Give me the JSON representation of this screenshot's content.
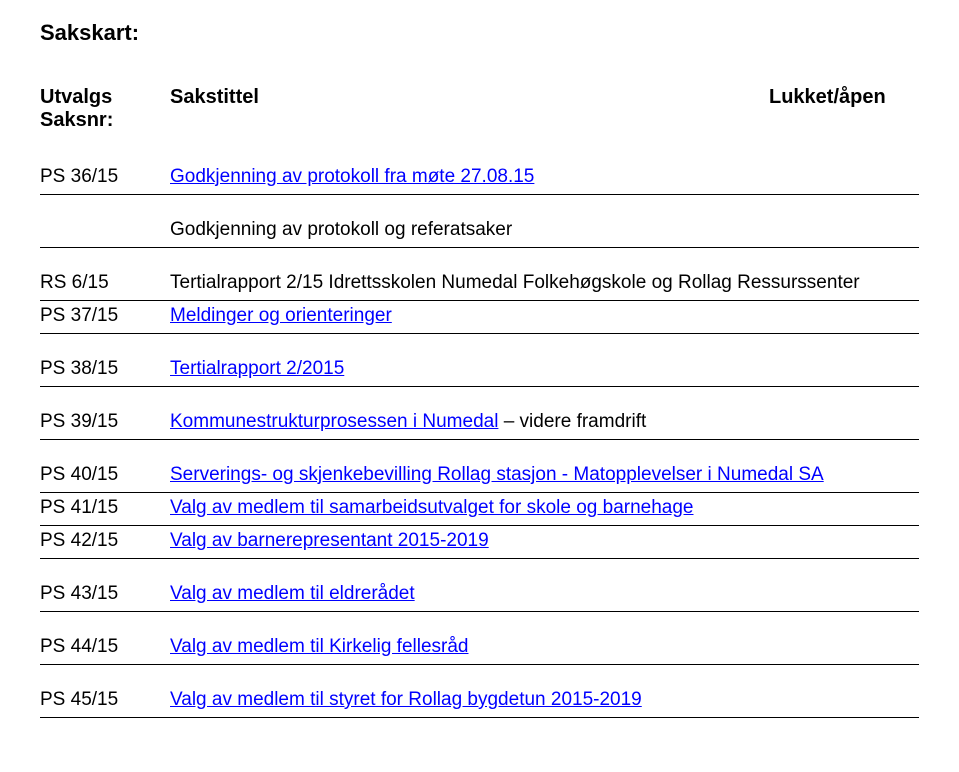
{
  "title": "Sakskart:",
  "columns": {
    "left_line1": "Utvalgs",
    "left_line2": "Saksnr:",
    "mid": "Sakstittel",
    "right": "Lukket/åpen"
  },
  "link_color": "#0000ff",
  "text_color": "#000000",
  "border_color": "#000000",
  "font_size_body": 19,
  "font_size_title": 22,
  "rows": [
    {
      "id": "PS 36/15",
      "parts": [
        {
          "text": "Godkjenning av protokoll fra møte 27.08.15",
          "link": true
        }
      ],
      "spacer_after": true
    },
    {
      "id": "",
      "parts": [
        {
          "text": "Godkjenning av protokoll og referatsaker",
          "link": false
        }
      ],
      "spacer_after": true
    },
    {
      "id": "RS 6/15",
      "parts": [
        {
          "text": "Tertialrapport 2/15 Idrettsskolen Numedal Folkehøgskole og Rollag Ressurssenter",
          "link": false
        }
      ]
    },
    {
      "id": "PS 37/15",
      "parts": [
        {
          "text": "Meldinger og orienteringer",
          "link": true
        }
      ],
      "spacer_after": true
    },
    {
      "id": "PS 38/15",
      "parts": [
        {
          "text": "Tertialrapport 2/2015",
          "link": true
        }
      ],
      "spacer_after": true
    },
    {
      "id": "PS 39/15",
      "parts": [
        {
          "text": "Kommunestrukturprosessen i Numedal",
          "link": true
        },
        {
          "text": " – videre framdrift",
          "link": false
        }
      ],
      "spacer_after": true
    },
    {
      "id": "PS 40/15",
      "parts": [
        {
          "text": "Serverings- og skjenkebevilling Rollag stasjon - Matopplevelser i Numedal SA",
          "link": true
        }
      ]
    },
    {
      "id": "PS 41/15",
      "parts": [
        {
          "text": "Valg av medlem til samarbeidsutvalget for skole og barnehage",
          "link": true
        }
      ]
    },
    {
      "id": "PS 42/15",
      "parts": [
        {
          "text": "Valg av barnerepresentant 2015-2019",
          "link": true
        }
      ],
      "spacer_after": true
    },
    {
      "id": "PS 43/15",
      "parts": [
        {
          "text": "Valg av medlem til eldrerådet",
          "link": true
        }
      ],
      "spacer_after": true
    },
    {
      "id": "PS 44/15",
      "parts": [
        {
          "text": "Valg av medlem til Kirkelig fellesråd",
          "link": true
        }
      ],
      "spacer_after": true
    },
    {
      "id": "PS 45/15",
      "parts": [
        {
          "text": "Valg av medlem til styret for Rollag bygdetun 2015-2019",
          "link": true
        }
      ]
    }
  ]
}
